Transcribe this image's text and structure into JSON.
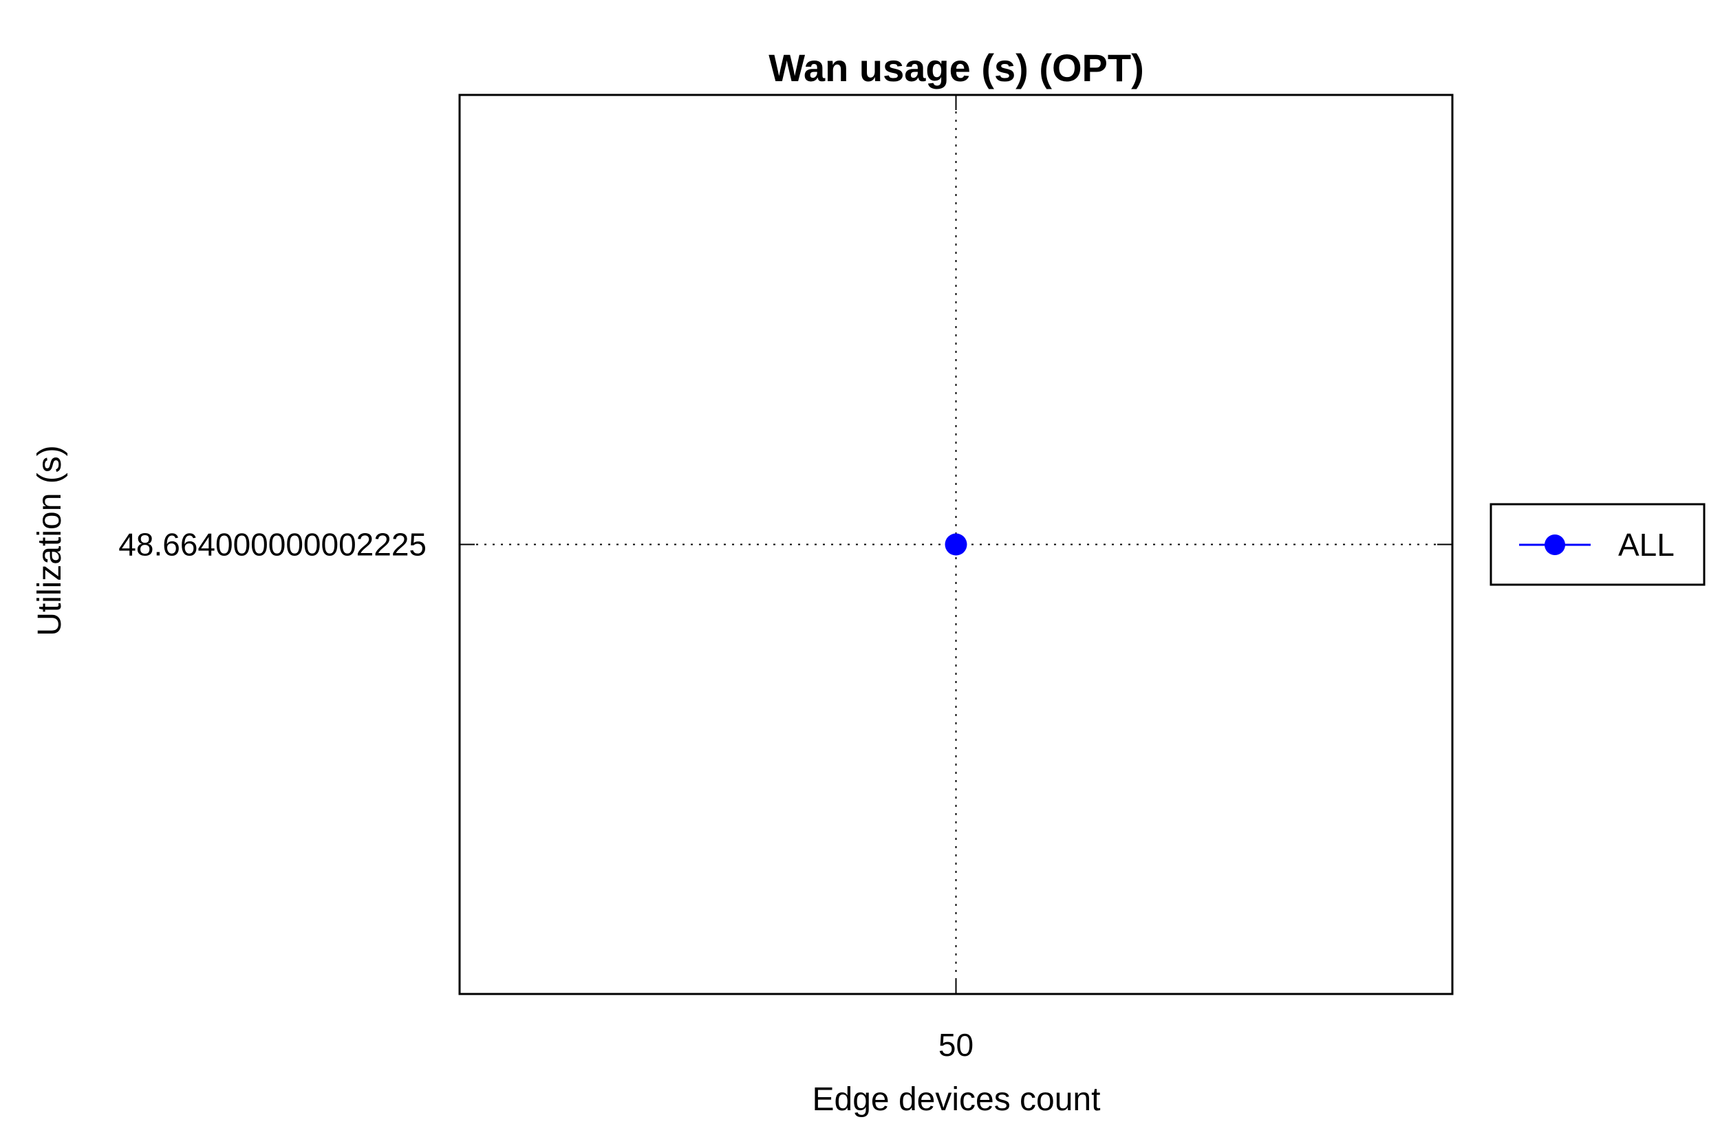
{
  "chart_data": {
    "type": "line",
    "title": "Wan usage (s) (OPT)",
    "xlabel": "Edge devices count",
    "ylabel": "Utilization (s)",
    "x": [
      50
    ],
    "x_tick_labels": [
      "50"
    ],
    "y_tick_labels": [
      "48.664000000002225"
    ],
    "series": [
      {
        "name": "ALL",
        "color": "#0000ff",
        "marker": "circle",
        "values": [
          48.664000000002225
        ]
      }
    ],
    "grid": true,
    "grid_style": "dotted",
    "legend_position": "right"
  }
}
